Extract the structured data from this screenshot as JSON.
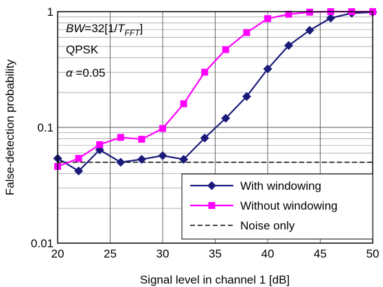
{
  "chart_data": {
    "type": "line",
    "xlabel": "Signal level in channel 1 [dB]",
    "ylabel": "False-detection probability",
    "xlim": [
      20,
      50
    ],
    "ylim": [
      0.01,
      1
    ],
    "yscale": "log",
    "grid": true,
    "x_ticks": [
      "20",
      "25",
      "30",
      "35",
      "40",
      "45",
      "50"
    ],
    "y_ticks": [
      {
        "value": 0.01,
        "label": "0.01"
      },
      {
        "value": 0.1,
        "label": "0.1"
      },
      {
        "value": 1,
        "label": "1"
      }
    ],
    "annotations": {
      "bw_prefix": "BW",
      "bw_mid": "=32[1/",
      "bw_T": "T",
      "bw_sub": "FFT",
      "bw_suffix": "]",
      "modulation": "QPSK",
      "alpha_symbol": "α",
      "alpha_value": " =0.05"
    },
    "legend_position": "bottom-right",
    "series": [
      {
        "name": "With windowing",
        "color": "#1a1a7a",
        "marker": "diamond",
        "x": [
          20,
          22,
          24,
          26,
          28,
          30,
          32,
          34,
          36,
          38,
          40,
          42,
          44,
          46,
          48,
          50
        ],
        "y": [
          0.054,
          0.042,
          0.064,
          0.05,
          0.053,
          0.057,
          0.053,
          0.081,
          0.12,
          0.185,
          0.32,
          0.51,
          0.69,
          0.88,
          0.97,
          0.99
        ]
      },
      {
        "name": "Without windowing",
        "color": "#ff00ff",
        "marker": "square",
        "x": [
          20,
          22,
          24,
          26,
          28,
          30,
          32,
          34,
          36,
          38,
          40,
          42,
          44,
          46,
          48,
          50
        ],
        "y": [
          0.046,
          0.054,
          0.071,
          0.082,
          0.079,
          0.098,
          0.16,
          0.3,
          0.47,
          0.66,
          0.87,
          0.95,
          0.99,
          1.0,
          1.0,
          1.0
        ]
      },
      {
        "name": "Noise only",
        "color": "#000000",
        "style": "dashed",
        "x": [
          20,
          50
        ],
        "y": [
          0.05,
          0.05
        ]
      }
    ]
  }
}
